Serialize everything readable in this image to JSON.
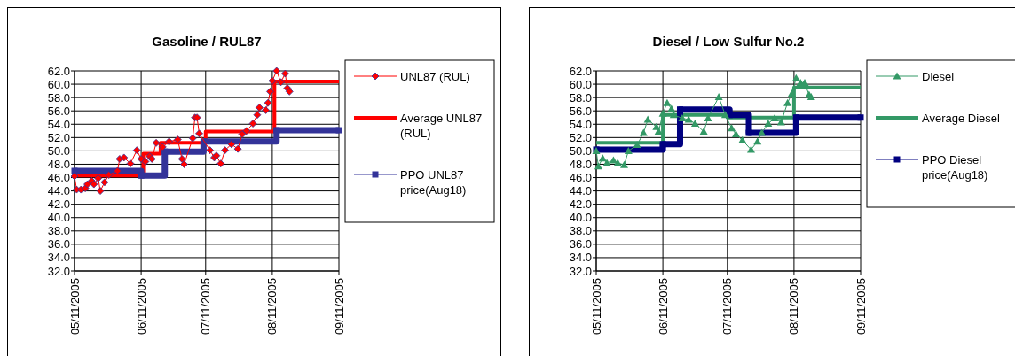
{
  "chart_data": [
    {
      "type": "line",
      "title": "Gasoline / RUL87",
      "grid": true,
      "legend": "right",
      "xlim": [
        "2005-05-11",
        "2005-09-11"
      ],
      "xticks": [
        {
          "value": "2005-05-11",
          "label": "05/11/2005"
        },
        {
          "value": "2005-06-11",
          "label": "06/11/2005"
        },
        {
          "value": "2005-07-11",
          "label": "07/11/2005"
        },
        {
          "value": "2005-08-11",
          "label": "08/11/2005"
        },
        {
          "value": "2005-09-11",
          "label": "09/11/2005"
        }
      ],
      "ylim": [
        32,
        62
      ],
      "yticks": [
        {
          "value": 32,
          "label": "32.0"
        },
        {
          "value": 34,
          "label": "34.0"
        },
        {
          "value": 36,
          "label": "36.0"
        },
        {
          "value": 38,
          "label": "38.0"
        },
        {
          "value": 40,
          "label": "40.0"
        },
        {
          "value": 42,
          "label": "42.0"
        },
        {
          "value": 44,
          "label": "44.0"
        },
        {
          "value": 46,
          "label": "46.0"
        },
        {
          "value": 48,
          "label": "48.0"
        },
        {
          "value": 50,
          "label": "50.0"
        },
        {
          "value": 52,
          "label": "52.0"
        },
        {
          "value": 54,
          "label": "54.0"
        },
        {
          "value": 56,
          "label": "56.0"
        },
        {
          "value": 58,
          "label": "58.0"
        },
        {
          "value": 60,
          "label": "60.0"
        },
        {
          "value": 62,
          "label": "62.0"
        }
      ],
      "series": [
        {
          "name": "UNL87 (RUL)",
          "type": "line",
          "marker": "diamond",
          "color": "#ff0000",
          "x": [
            "2005-05-11",
            "2005-05-12",
            "2005-05-14",
            "2005-05-16",
            "2005-05-17",
            "2005-05-19",
            "2005-05-20",
            "2005-05-22",
            "2005-05-23",
            "2005-05-25",
            "2005-05-27",
            "2005-05-31",
            "2005-06-01",
            "2005-06-03",
            "2005-06-06",
            "2005-06-09",
            "2005-06-11",
            "2005-06-13",
            "2005-06-15",
            "2005-06-16",
            "2005-06-18",
            "2005-06-21",
            "2005-06-24",
            "2005-06-28",
            "2005-06-30",
            "2005-07-01",
            "2005-07-05",
            "2005-07-06",
            "2005-07-07",
            "2005-07-08",
            "2005-07-13",
            "2005-07-15",
            "2005-07-16",
            "2005-07-18",
            "2005-07-20",
            "2005-07-23",
            "2005-07-26",
            "2005-07-28",
            "2005-07-30",
            "2005-08-02",
            "2005-08-04",
            "2005-08-05",
            "2005-08-08",
            "2005-08-09",
            "2005-08-10",
            "2005-08-11",
            "2005-08-13",
            "2005-08-15",
            "2005-08-17",
            "2005-08-18",
            "2005-08-19"
          ],
          "values": [
            46.2,
            44.2,
            44.2,
            44.4,
            45.0,
            45.5,
            45.0,
            45.9,
            44.0,
            45.3,
            46.4,
            47.0,
            48.8,
            49.0,
            48.1,
            50.1,
            48.8,
            48.4,
            49.2,
            48.8,
            51.2,
            50.6,
            51.4,
            51.7,
            48.8,
            48.0,
            51.9,
            55.0,
            55.0,
            52.6,
            50.1,
            49.0,
            49.3,
            48.1,
            50.1,
            51.0,
            50.3,
            52.5,
            53.0,
            54.1,
            55.4,
            56.5,
            56.1,
            57.2,
            58.9,
            60.5,
            62.0,
            60.3,
            61.6,
            59.4,
            58.9
          ]
        },
        {
          "name": "Average UNL87 (RUL)",
          "type": "step",
          "marker": "none",
          "color": "#ff0000",
          "x": [
            "2005-05-11",
            "2005-06-12",
            "2005-06-20",
            "2005-07-11",
            "2005-08-12",
            "2005-09-11"
          ],
          "values": [
            46.3,
            49.6,
            51.2,
            52.9,
            60.4,
            60.4
          ]
        },
        {
          "name": "PPO UNL87 price(Aug18)",
          "type": "step",
          "marker": "square",
          "color": "#333399",
          "x": [
            "2005-05-11",
            "2005-06-11",
            "2005-06-22",
            "2005-07-10",
            "2005-08-13",
            "2005-09-11"
          ],
          "values": [
            47.0,
            46.3,
            49.9,
            51.4,
            53.1,
            53.1
          ]
        }
      ]
    },
    {
      "type": "line",
      "title": "Diesel / Low Sulfur No.2",
      "grid": true,
      "legend": "right",
      "xlim": [
        "2005-05-11",
        "2005-09-11"
      ],
      "xticks": [
        {
          "value": "2005-05-11",
          "label": "05/11/2005"
        },
        {
          "value": "2005-06-11",
          "label": "06/11/2005"
        },
        {
          "value": "2005-07-11",
          "label": "07/11/2005"
        },
        {
          "value": "2005-08-11",
          "label": "08/11/2005"
        },
        {
          "value": "2005-09-11",
          "label": "09/11/2005"
        }
      ],
      "ylim": [
        32,
        62
      ],
      "yticks": [
        {
          "value": 32,
          "label": "32.0"
        },
        {
          "value": 34,
          "label": "34.0"
        },
        {
          "value": 36,
          "label": "36.0"
        },
        {
          "value": 38,
          "label": "38.0"
        },
        {
          "value": 40,
          "label": "40.0"
        },
        {
          "value": 42,
          "label": "42.0"
        },
        {
          "value": 44,
          "label": "44.0"
        },
        {
          "value": 46,
          "label": "46.0"
        },
        {
          "value": 48,
          "label": "48.0"
        },
        {
          "value": 50,
          "label": "50.0"
        },
        {
          "value": 52,
          "label": "52.0"
        },
        {
          "value": 54,
          "label": "54.0"
        },
        {
          "value": 56,
          "label": "56.0"
        },
        {
          "value": 58,
          "label": "58.0"
        },
        {
          "value": 60,
          "label": "60.0"
        },
        {
          "value": 62,
          "label": "62.0"
        }
      ],
      "series": [
        {
          "name": "Diesel",
          "type": "line",
          "marker": "triangle",
          "color": "#339966",
          "x": [
            "2005-05-11",
            "2005-05-12",
            "2005-05-14",
            "2005-05-16",
            "2005-05-19",
            "2005-05-21",
            "2005-05-24",
            "2005-05-26",
            "2005-05-30",
            "2005-06-02",
            "2005-06-04",
            "2005-06-08",
            "2005-06-09",
            "2005-06-11",
            "2005-06-13",
            "2005-06-15",
            "2005-06-16",
            "2005-06-20",
            "2005-06-23",
            "2005-06-26",
            "2005-06-30",
            "2005-07-02",
            "2005-07-07",
            "2005-07-10",
            "2005-07-13",
            "2005-07-15",
            "2005-07-18",
            "2005-07-22",
            "2005-07-25",
            "2005-07-27",
            "2005-07-30",
            "2005-08-02",
            "2005-08-05",
            "2005-08-08",
            "2005-08-10",
            "2005-08-12",
            "2005-08-14",
            "2005-08-16",
            "2005-08-18",
            "2005-08-19"
          ],
          "values": [
            50.0,
            47.7,
            48.9,
            48.2,
            48.6,
            48.2,
            47.9,
            50.0,
            50.9,
            52.7,
            54.7,
            53.6,
            52.9,
            55.6,
            57.2,
            56.3,
            55.4,
            54.9,
            54.7,
            54.1,
            52.9,
            54.9,
            58.1,
            55.4,
            53.4,
            52.5,
            51.6,
            50.2,
            51.4,
            52.7,
            54.1,
            54.9,
            54.3,
            57.2,
            58.6,
            60.9,
            60.2,
            60.2,
            58.4,
            58.1
          ]
        },
        {
          "name": "Average Diesel",
          "type": "step",
          "marker": "none",
          "color": "#339966",
          "x": [
            "2005-05-11",
            "2005-06-11",
            "2005-07-11",
            "2005-08-11",
            "2005-09-11"
          ],
          "values": [
            51.2,
            55.4,
            55.0,
            59.5,
            59.5
          ]
        },
        {
          "name": "PPO Diesel price(Aug18)",
          "type": "step",
          "marker": "square",
          "color": "#000080",
          "x": [
            "2005-05-11",
            "2005-06-11",
            "2005-06-19",
            "2005-07-12",
            "2005-07-21",
            "2005-08-12",
            "2005-09-11"
          ],
          "values": [
            50.2,
            51.0,
            56.2,
            55.4,
            52.7,
            55.0,
            55.0
          ]
        }
      ]
    }
  ]
}
